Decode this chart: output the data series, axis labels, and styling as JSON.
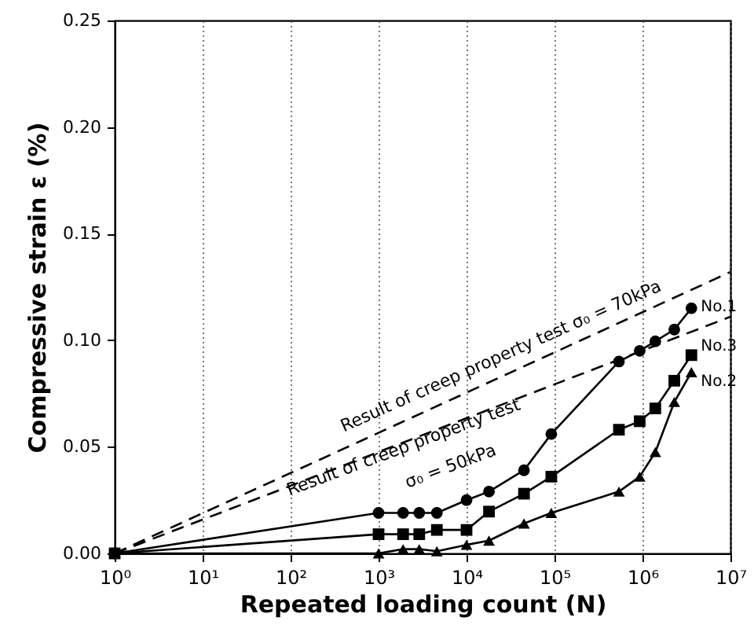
{
  "chart_data": {
    "type": "line",
    "xlabel": "Repeated loading count (N)",
    "ylabel": "Compressive strain  ε  (%)",
    "log": "x",
    "grid": "x",
    "xlim": [
      1,
      10000000
    ],
    "ylim": [
      0,
      0.25
    ],
    "xticks": [
      {
        "value": 1,
        "label": "10⁰"
      },
      {
        "value": 10,
        "label": "10¹"
      },
      {
        "value": 100,
        "label": "10²"
      },
      {
        "value": 1000,
        "label": "10³"
      },
      {
        "value": 10000,
        "label": "10⁴"
      },
      {
        "value": 100000,
        "label": "10⁵"
      },
      {
        "value": 1000000,
        "label": "10⁶"
      },
      {
        "value": 10000000,
        "label": "10⁷"
      }
    ],
    "yticks": [
      {
        "value": 0,
        "label": "0.00"
      },
      0.05,
      {
        "value": 0.1,
        "label": "0.10"
      },
      0.15,
      {
        "value": 0.2,
        "label": "0.20"
      },
      0.25
    ],
    "series": [
      {
        "name": "No.1",
        "color": "#000000",
        "marker": "circle",
        "x": [
          1,
          1000,
          1900,
          2900,
          4600,
          10000,
          18000,
          45000,
          92000,
          540000,
          930000,
          1400000,
          2300000,
          3600000
        ],
        "values": [
          0,
          0.019,
          0.019,
          0.019,
          0.019,
          0.025,
          0.029,
          0.039,
          0.056,
          0.09,
          0.095,
          0.0995,
          0.105,
          0.115
        ]
      },
      {
        "name": "No.3",
        "color": "#000000",
        "marker": "square",
        "x": [
          1,
          1000,
          1900,
          2900,
          4600,
          10000,
          18000,
          45000,
          92000,
          540000,
          930000,
          1400000,
          2300000,
          3600000
        ],
        "values": [
          0,
          0.009,
          0.009,
          0.009,
          0.011,
          0.011,
          0.0196,
          0.028,
          0.036,
          0.058,
          0.062,
          0.068,
          0.081,
          0.093
        ]
      },
      {
        "name": "No.2",
        "color": "#000000",
        "marker": "triangle",
        "x": [
          1,
          1000,
          1900,
          2900,
          4600,
          10000,
          18000,
          45000,
          92000,
          540000,
          930000,
          1400000,
          2300000,
          3600000
        ],
        "values": [
          0,
          0,
          0.002,
          0.002,
          0.001,
          0.004,
          0.006,
          0.014,
          0.019,
          0.029,
          0.036,
          0.0475,
          0.071,
          0.085
        ]
      },
      {
        "color": "#000000",
        "marker": "none",
        "line_style": "dashed",
        "x": [
          1,
          10000000
        ],
        "values": [
          0,
          0.132
        ]
      },
      {
        "color": "#000000",
        "marker": "none",
        "line_style": "dashed",
        "x": [
          1,
          10000000
        ],
        "values": [
          0,
          0.111
        ]
      }
    ],
    "annotations": [
      "Result of creep property test σ₀ = 70kPa",
      "Result of creep property test",
      "σ₀ = 50kPa"
    ]
  }
}
